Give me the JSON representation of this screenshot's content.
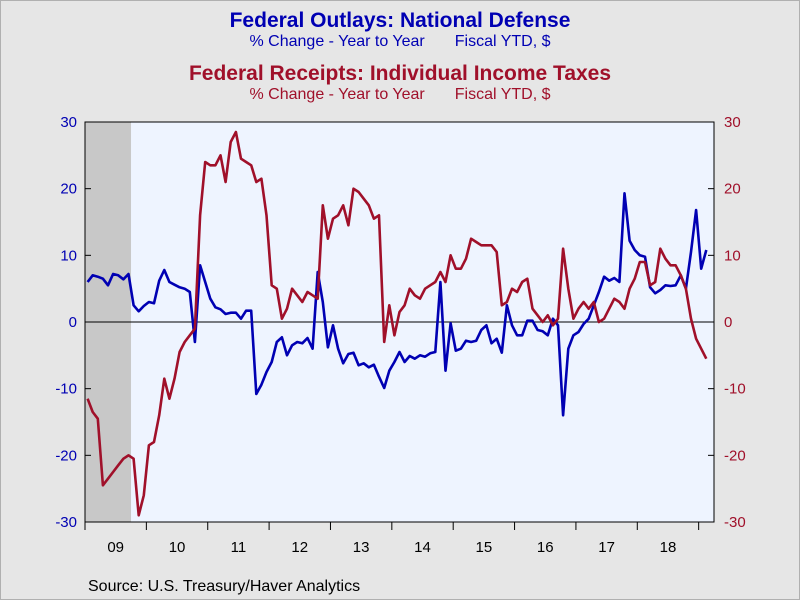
{
  "titles": {
    "outlays_title": "Federal Outlays: National Defense",
    "outlays_sub_a": "% Change - Year to Year",
    "outlays_sub_b": "Fiscal YTD, $",
    "receipts_title": "Federal Receipts: Individual Income Taxes",
    "receipts_sub_a": "% Change - Year to Year",
    "receipts_sub_b": "Fiscal YTD, $"
  },
  "source": "Source:  U.S. Treasury/Haver Analytics",
  "colors": {
    "outlays": "#0000b3",
    "receipts": "#a0102a",
    "plot_bg": "#eef4ff",
    "page_bg": "#e6e6e6",
    "recession": "#c8c8c8"
  },
  "chart_data": {
    "type": "line",
    "x_range": [
      "2008-10",
      "2018-12"
    ],
    "x_tick_labels": [
      "09",
      "10",
      "11",
      "12",
      "13",
      "14",
      "15",
      "16",
      "17",
      "18"
    ],
    "left_axis": {
      "ylim": [
        -30,
        30
      ],
      "ticks": [
        -30,
        -20,
        -10,
        0,
        10,
        20,
        30
      ]
    },
    "right_axis": {
      "ylim": [
        -30,
        30
      ],
      "ticks": [
        -30,
        -20,
        -10,
        0,
        10,
        20,
        30
      ]
    },
    "zero_line": true,
    "recession_shading": [
      "2008-10",
      "2009-06"
    ],
    "series": [
      {
        "name": "Federal Outlays: National Defense",
        "axis": "left",
        "start": "2008-10",
        "values": [
          6,
          7,
          6.8,
          6.5,
          5.5,
          7.2,
          7.0,
          6.4,
          7.2,
          2.5,
          1.6,
          2.4,
          3.0,
          2.8,
          6.2,
          7.8,
          6.0,
          5.6,
          5.2,
          5.0,
          4.5,
          -3.0,
          8.5,
          6.0,
          3.5,
          2.2,
          1.9,
          1.2,
          1.4,
          1.4,
          0.5,
          1.7,
          1.7,
          -10.8,
          -9.4,
          -7.5,
          -6.0,
          -3.0,
          -2.3,
          -5.0,
          -3.5,
          -3.0,
          -3.2,
          -2.4,
          -4.0,
          7.5,
          3.0,
          -3.8,
          -0.5,
          -4.0,
          -6.2,
          -4.8,
          -4.6,
          -6.5,
          -6.2,
          -6.8,
          -6.4,
          -8.2,
          -9.9,
          -7.3,
          -6.0,
          -4.5,
          -6.0,
          -5.1,
          -5.5,
          -5.0,
          -5.2,
          -4.7,
          -4.5,
          6.0,
          -7.3,
          -0.2,
          -4.3,
          -4.0,
          -2.8,
          -3.0,
          -2.8,
          -1.2,
          -0.5,
          -3.2,
          -2.5,
          -4.6,
          2.5,
          -0.5,
          -2.0,
          -2.0,
          0.2,
          0.2,
          -1.2,
          -1.4,
          -2.0,
          0.5,
          -0.5,
          -14.0,
          -4.0,
          -2.0,
          -1.5,
          -0.3,
          0.5,
          2.5,
          4.5,
          6.8,
          6.2,
          6.6,
          6.0,
          19.3,
          12.2,
          10.8,
          10.0,
          9.8,
          5.2,
          4.3,
          4.8,
          5.5,
          5.4,
          5.5,
          7.0,
          5.0,
          10.5,
          16.8,
          8.0,
          10.8
        ]
      },
      {
        "name": "Federal Receipts: Individual Income Taxes",
        "axis": "right",
        "start": "2008-10",
        "values": [
          -11.5,
          -13.5,
          -14.5,
          -24.5,
          -23.5,
          -22.5,
          -21.5,
          -20.5,
          -20.0,
          -20.5,
          -29.0,
          -26.0,
          -18.5,
          -18.0,
          -14.0,
          -8.5,
          -11.5,
          -8.5,
          -4.5,
          -3.0,
          -2.0,
          -1.0,
          16.0,
          24.0,
          23.5,
          23.5,
          25.0,
          21.0,
          27.0,
          28.5,
          24.5,
          24.0,
          23.5,
          21.0,
          21.5,
          16.0,
          5.5,
          5.0,
          0.5,
          2.0,
          5.0,
          4.0,
          3.0,
          4.5,
          4.0,
          3.5,
          17.5,
          12.5,
          15.5,
          16.0,
          17.5,
          14.5,
          20.0,
          19.5,
          18.5,
          17.5,
          15.5,
          16.0,
          -3.0,
          2.5,
          -2.0,
          1.5,
          2.5,
          5.0,
          4.0,
          3.5,
          5.0,
          5.5,
          6.0,
          7.5,
          6.0,
          10.0,
          8.0,
          8.0,
          9.5,
          12.5,
          12.0,
          11.5,
          11.5,
          11.5,
          10.5,
          2.5,
          3.0,
          5.0,
          4.5,
          6.0,
          6.5,
          2.0,
          1.0,
          0.0,
          1.0,
          -0.5,
          0.5,
          11.0,
          5.0,
          0.5,
          2.0,
          3.0,
          2.0,
          3.0,
          0.0,
          0.5,
          2.0,
          3.5,
          3.0,
          2.0,
          5.0,
          6.5,
          9.0,
          9.0,
          5.5,
          6.0,
          11.0,
          9.5,
          8.5,
          8.5,
          7.0,
          5.0,
          0.5,
          -2.5,
          -4.0,
          -5.5
        ]
      }
    ]
  }
}
